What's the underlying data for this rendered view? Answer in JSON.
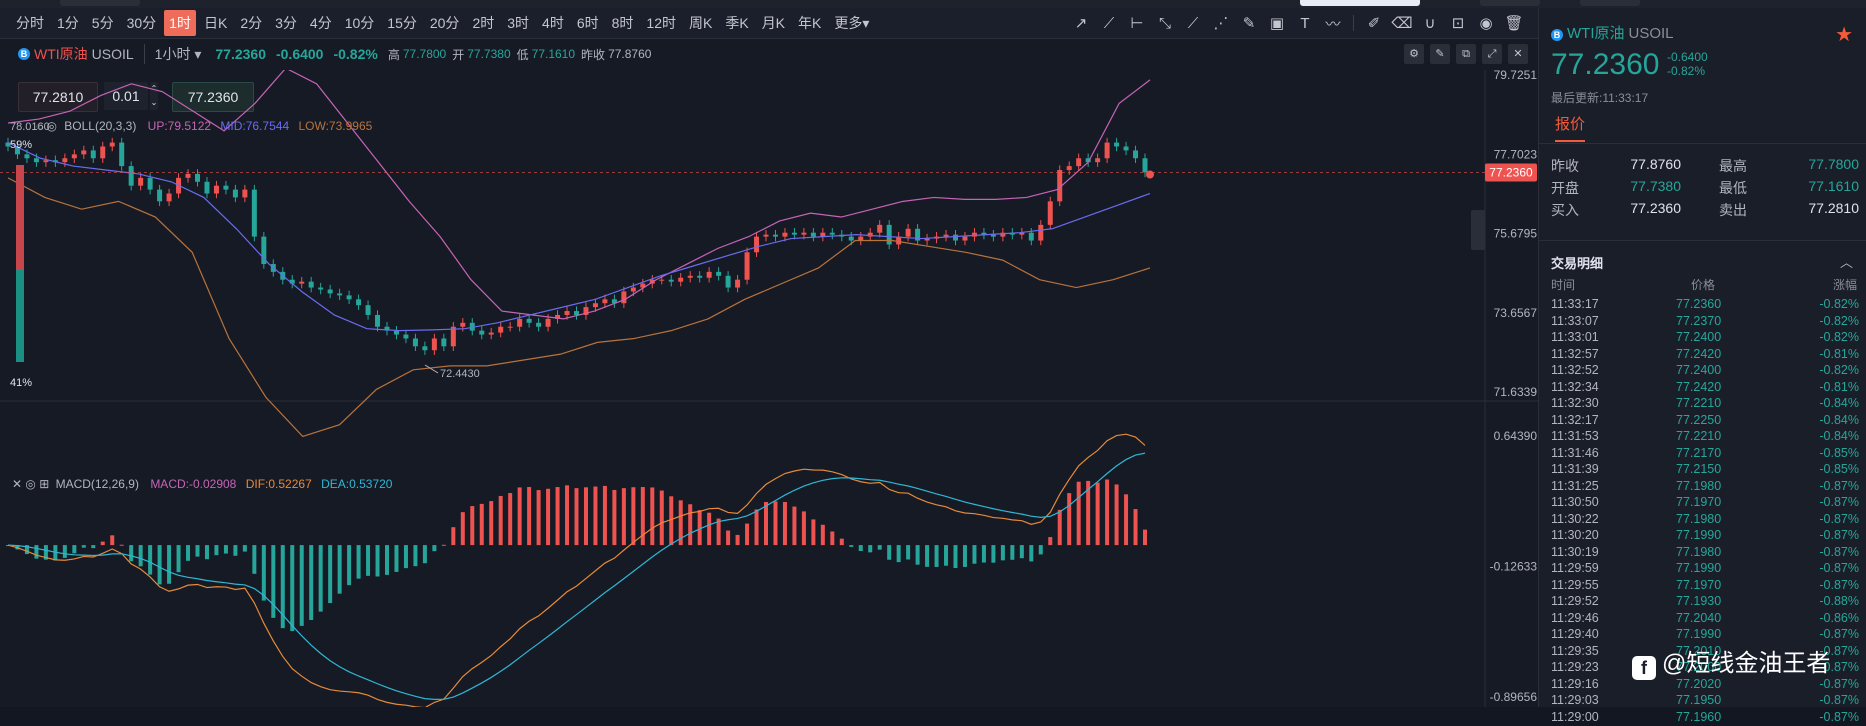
{
  "periods": [
    {
      "label": "分时",
      "active": false
    },
    {
      "label": "1分",
      "active": false
    },
    {
      "label": "5分",
      "active": false
    },
    {
      "label": "30分",
      "active": false
    },
    {
      "label": "1时",
      "active": true
    },
    {
      "label": "日K",
      "active": false
    },
    {
      "label": "2分",
      "active": false
    },
    {
      "label": "3分",
      "active": false
    },
    {
      "label": "4分",
      "active": false
    },
    {
      "label": "10分",
      "active": false
    },
    {
      "label": "15分",
      "active": false
    },
    {
      "label": "20分",
      "active": false
    },
    {
      "label": "2时",
      "active": false
    },
    {
      "label": "3时",
      "active": false
    },
    {
      "label": "4时",
      "active": false
    },
    {
      "label": "6时",
      "active": false
    },
    {
      "label": "8时",
      "active": false
    },
    {
      "label": "12时",
      "active": false
    },
    {
      "label": "周K",
      "active": false
    },
    {
      "label": "季K",
      "active": false
    },
    {
      "label": "月K",
      "active": false
    },
    {
      "label": "年K",
      "active": false
    },
    {
      "label": "更多▾",
      "active": false
    }
  ],
  "info": {
    "name": "WTI原油",
    "code": "USOIL",
    "interval": "1小时 ▾",
    "price": "77.2360",
    "change": "-0.6400",
    "pct": "-0.82%",
    "high_label": "高",
    "high": "77.7800",
    "open_label": "开",
    "open": "77.7380",
    "low_label": "低",
    "low": "77.1610",
    "prev_label": "昨收",
    "prev": "77.8760"
  },
  "order": {
    "sell": "77.2810",
    "qty": "0.01",
    "buy": "77.2360"
  },
  "boll": {
    "label": "BOLL(20,3,3)",
    "up": "UP:79.5122",
    "mid": "MID:76.7544",
    "low": "LOW:73.9965"
  },
  "macd": {
    "label": "MACD(12,26,9)",
    "macd": "MACD:-0.02908",
    "dif": "DIF:0.52267",
    "dea": "DEA:0.53720"
  },
  "overlay": {
    "top_pct": "59%",
    "bot_pct": "41%",
    "high_mark": "78.0160",
    "low_mark": "72.4430"
  },
  "chart_data": {
    "type": "candlestick",
    "symbol": "USOIL",
    "interval": "1时",
    "price_axis": {
      "ylim": [
        71.6339,
        79.7251
      ],
      "ticks": [
        "79.7251",
        "77.7023",
        "75.6795",
        "73.6567",
        "71.6339"
      ],
      "last": "77.2360"
    },
    "macd_axis": {
      "ylim": [
        -0.89656,
        0.6439
      ],
      "ticks": [
        "0.64390",
        "-0.12633",
        "-0.89656"
      ]
    },
    "close": [
      77.9,
      77.7,
      77.6,
      77.5,
      77.55,
      77.5,
      77.6,
      77.7,
      77.8,
      77.6,
      77.9,
      78.0,
      77.4,
      76.9,
      77.1,
      76.8,
      76.5,
      76.7,
      77.1,
      77.2,
      77.0,
      76.7,
      76.9,
      76.8,
      76.6,
      76.8,
      75.6,
      74.9,
      74.7,
      74.5,
      74.4,
      74.45,
      74.3,
      74.25,
      74.15,
      74.1,
      74.0,
      73.85,
      73.6,
      73.3,
      73.2,
      73.1,
      73.0,
      72.8,
      72.7,
      73.0,
      72.8,
      73.3,
      73.4,
      73.2,
      73.1,
      73.15,
      73.3,
      73.3,
      73.5,
      73.4,
      73.3,
      73.5,
      73.6,
      73.7,
      73.6,
      73.8,
      73.9,
      74.0,
      73.9,
      74.2,
      74.3,
      74.4,
      74.5,
      74.5,
      74.45,
      74.55,
      74.6,
      74.55,
      74.7,
      74.6,
      74.3,
      74.5,
      75.2,
      75.6,
      75.65,
      75.6,
      75.7,
      75.65,
      75.7,
      75.6,
      75.7,
      75.65,
      75.6,
      75.5,
      75.6,
      75.7,
      75.9,
      75.4,
      75.6,
      75.8,
      75.5,
      75.55,
      75.6,
      75.65,
      75.5,
      75.6,
      75.7,
      75.65,
      75.6,
      75.7,
      75.65,
      75.7,
      75.5,
      75.9,
      76.5,
      77.3,
      77.4,
      77.6,
      77.5,
      77.6,
      78.0,
      77.9,
      77.8,
      77.6,
      77.24
    ],
    "boll_up": [
      78.5,
      78.6,
      78.8,
      79.2,
      79.5,
      79.3,
      78.8,
      78.3,
      79.0,
      79.9,
      79.5,
      78.5,
      77.5,
      76.5,
      75.6,
      74.5,
      73.7,
      73.6,
      73.5,
      73.7,
      74.0,
      74.5,
      74.9,
      75.3,
      75.6,
      76.0,
      76.2,
      76.1,
      76.3,
      76.5,
      76.6,
      76.55,
      76.55,
      76.6,
      76.8,
      77.5,
      79.0,
      79.6
    ],
    "boll_mid": [
      78.0,
      77.6,
      77.4,
      77.3,
      77.2,
      77.0,
      76.6,
      75.8,
      74.9,
      74.2,
      73.6,
      73.25,
      73.2,
      73.22,
      73.25,
      73.4,
      73.6,
      73.8,
      74.0,
      74.3,
      74.6,
      74.85,
      75.1,
      75.35,
      75.55,
      75.6,
      75.65,
      75.6,
      75.55,
      75.6,
      75.65,
      75.7,
      75.8,
      76.1,
      76.4,
      76.7
    ],
    "boll_low": [
      77.1,
      76.6,
      76.3,
      76.5,
      76.1,
      75.2,
      73.0,
      71.5,
      70.5,
      70.8,
      71.7,
      72.2,
      72.3,
      72.3,
      72.45,
      72.6,
      72.9,
      73.0,
      73.2,
      73.5,
      74.0,
      74.4,
      74.8,
      75.5,
      75.5,
      75.35,
      75.2,
      75.0,
      74.5,
      74.3,
      74.5,
      74.8
    ]
  },
  "side": {
    "name": "WTI原油",
    "code": "USOIL",
    "price": "77.2360",
    "chg": "-0.6400",
    "pct": "-0.82%",
    "updated": "最后更新:11:33:17",
    "tab": "报价",
    "quotes": [
      {
        "l1": "昨收",
        "v1": "77.8760",
        "c1": "#e0e3eb",
        "l2": "最高",
        "v2": "77.7800",
        "c2": "#26a69a"
      },
      {
        "l1": "开盘",
        "v1": "77.7380",
        "c1": "#26a69a",
        "l2": "最低",
        "v2": "77.1610",
        "c2": "#26a69a"
      },
      {
        "l1": "买入",
        "v1": "77.2360",
        "c1": "#e0e3eb",
        "l2": "卖出",
        "v2": "77.2810",
        "c2": "#e0e3eb"
      }
    ],
    "trades_title": "交易明细",
    "cols": {
      "time": "时间",
      "price": "价格",
      "chg": "涨幅"
    },
    "trades": [
      [
        "11:33:17",
        "77.2360",
        "-0.82%"
      ],
      [
        "11:33:07",
        "77.2370",
        "-0.82%"
      ],
      [
        "11:33:01",
        "77.2400",
        "-0.82%"
      ],
      [
        "11:32:57",
        "77.2420",
        "-0.81%"
      ],
      [
        "11:32:52",
        "77.2400",
        "-0.82%"
      ],
      [
        "11:32:34",
        "77.2420",
        "-0.81%"
      ],
      [
        "11:32:30",
        "77.2210",
        "-0.84%"
      ],
      [
        "11:32:17",
        "77.2250",
        "-0.84%"
      ],
      [
        "11:31:53",
        "77.2210",
        "-0.84%"
      ],
      [
        "11:31:46",
        "77.2170",
        "-0.85%"
      ],
      [
        "11:31:39",
        "77.2150",
        "-0.85%"
      ],
      [
        "11:31:25",
        "77.1980",
        "-0.87%"
      ],
      [
        "11:30:50",
        "77.1970",
        "-0.87%"
      ],
      [
        "11:30:22",
        "77.1980",
        "-0.87%"
      ],
      [
        "11:30:20",
        "77.1990",
        "-0.87%"
      ],
      [
        "11:30:19",
        "77.1980",
        "-0.87%"
      ],
      [
        "11:29:59",
        "77.1990",
        "-0.87%"
      ],
      [
        "11:29:55",
        "77.1970",
        "-0.87%"
      ],
      [
        "11:29:52",
        "77.1930",
        "-0.88%"
      ],
      [
        "11:29:46",
        "77.2040",
        "-0.86%"
      ],
      [
        "11:29:40",
        "77.1990",
        "-0.87%"
      ],
      [
        "11:29:35",
        "77.2010",
        "-0.87%"
      ],
      [
        "11:29:23",
        "77.2000",
        "-0.87%"
      ],
      [
        "11:29:16",
        "77.2020",
        "-0.87%"
      ],
      [
        "11:29:03",
        "77.1950",
        "-0.87%"
      ],
      [
        "11:29:00",
        "77.1960",
        "-0.87%"
      ]
    ]
  },
  "watermark": "@短线金油王者",
  "colors": {
    "up": "#ef5350",
    "down": "#26a69a",
    "boll_up": "#c764b6",
    "boll_mid": "#6a6cf0",
    "boll_low": "#b8733b",
    "dif": "#e58a3a",
    "dea": "#2fb7d4",
    "accent": "#f35b3b"
  }
}
